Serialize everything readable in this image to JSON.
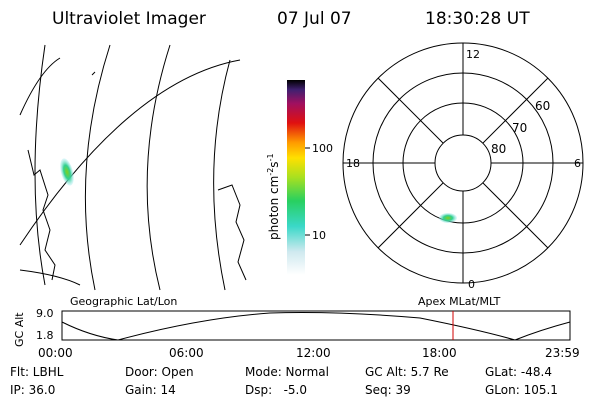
{
  "header": {
    "title": "Ultraviolet Imager",
    "date": "07 Jul 07",
    "time": "18:30:28 UT"
  },
  "colorbar": {
    "label": {
      "base": "photon cm",
      "sup1": "-2",
      "mid": "s",
      "sup2": "-1"
    },
    "ticks": [
      "100",
      "10"
    ]
  },
  "polar": {
    "mlt": {
      "top": "12",
      "left": "18",
      "right": "6",
      "bottom": "0"
    },
    "mlat": [
      "60",
      "70",
      "80"
    ]
  },
  "altitude_plot": {
    "left_label": "Geographic Lat/Lon",
    "right_label": "Apex MLat/MLT",
    "axis_label": "GC Alt",
    "yticks": [
      "9.0",
      "1.8"
    ],
    "xticks": [
      "00:00",
      "06:00",
      "12:00",
      "18:00",
      "23:59"
    ]
  },
  "info": {
    "rows": [
      [
        "Flt: LBHL",
        "Door: Open",
        "Mode: Normal",
        "GC Alt: 5.7 Re",
        "GLat: -48.4"
      ],
      [
        "IP: 36.0",
        "Gain: 14",
        "Dsp:   -5.0",
        "Seq: 39",
        "GLon: 105.1"
      ]
    ]
  }
}
